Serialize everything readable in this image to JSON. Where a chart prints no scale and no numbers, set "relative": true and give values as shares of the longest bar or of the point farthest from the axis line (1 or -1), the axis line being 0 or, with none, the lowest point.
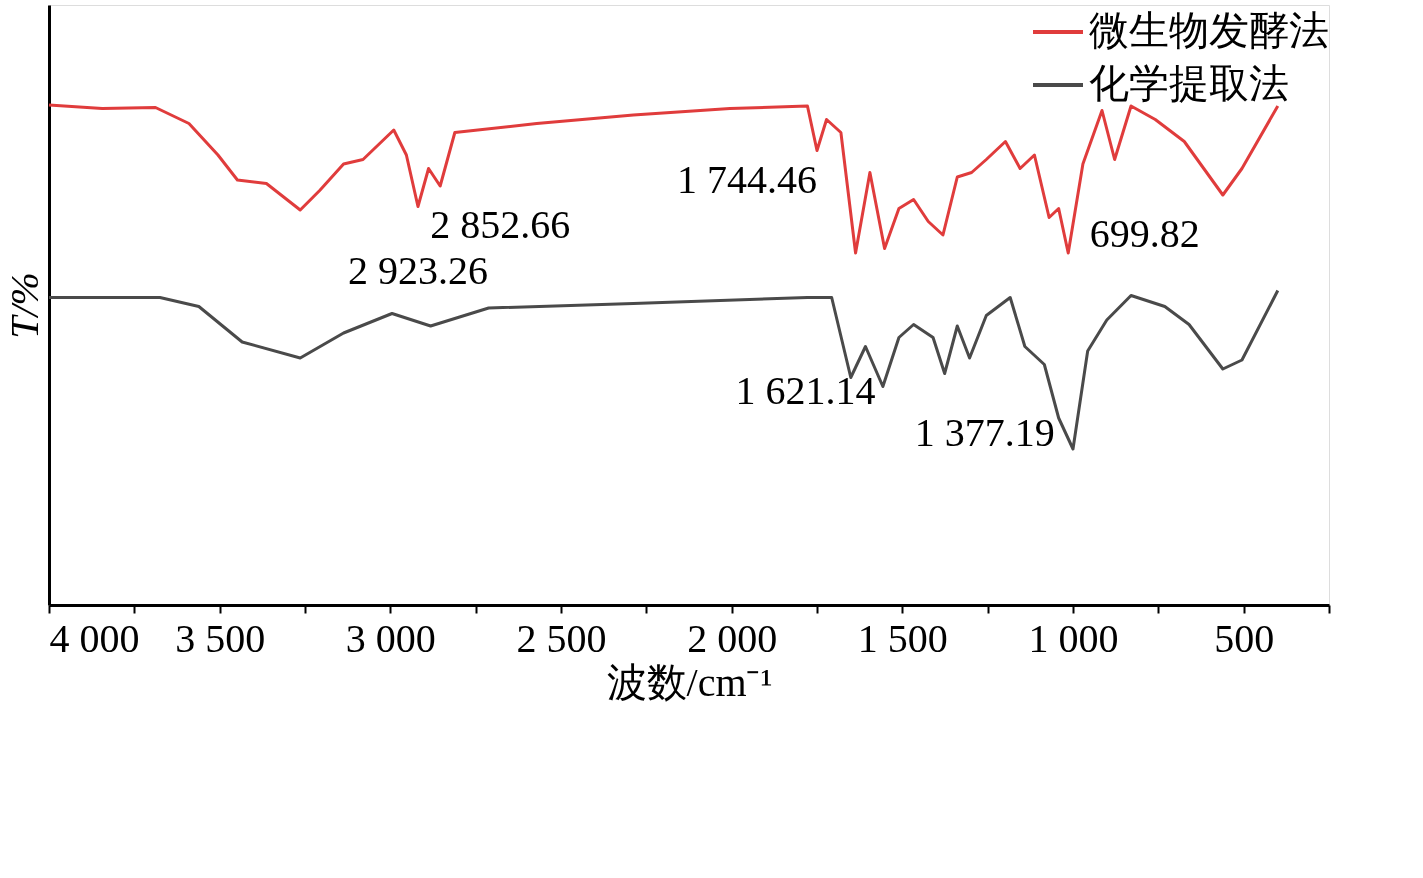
{
  "chart_data": {
    "type": "line",
    "relative": true,
    "xlabel": "波数/cm⁻¹",
    "ylabel": "T/%",
    "xlim": [
      4000,
      250
    ],
    "xticks": [
      {
        "value": 4000,
        "label": "4 000"
      },
      {
        "value": 3750,
        "label": null
      },
      {
        "value": 3500,
        "label": "3 500"
      },
      {
        "value": 3250,
        "label": null
      },
      {
        "value": 3000,
        "label": "3 000"
      },
      {
        "value": 2750,
        "label": null
      },
      {
        "value": 2500,
        "label": "2 500"
      },
      {
        "value": 2250,
        "label": null
      },
      {
        "value": 2000,
        "label": "2 000"
      },
      {
        "value": 1750,
        "label": null
      },
      {
        "value": 1500,
        "label": "1 500"
      },
      {
        "value": 1250,
        "label": null
      },
      {
        "value": 1000,
        "label": "1 000"
      },
      {
        "value": 750,
        "label": null
      },
      500,
      {
        "value": 250,
        "label": null
      }
    ],
    "legend": "top right",
    "grid": false,
    "series": [
      {
        "name": "微生物发酵法",
        "color": "#e03c3c",
        "x": [
          4000,
          3844,
          3688,
          3590,
          3505,
          3448,
          3363,
          3264,
          3207,
          3137,
          3080,
          2990,
          2953,
          2919,
          2888,
          2854,
          2811,
          2571,
          2288,
          2005,
          1778,
          1750,
          1722,
          1680,
          1637,
          1595,
          1552,
          1510,
          1467,
          1424,
          1381,
          1339,
          1297,
          1254,
          1198,
          1155,
          1113,
          1070,
          1042,
          1014,
          971,
          915,
          878,
          830,
          759,
          674,
          561,
          505,
          400
        ],
        "values": [
          1.0,
          0.993,
          0.995,
          0.963,
          0.9,
          0.85,
          0.843,
          0.79,
          0.829,
          0.882,
          0.891,
          0.95,
          0.9,
          0.797,
          0.873,
          0.838,
          0.945,
          0.963,
          0.98,
          0.993,
          0.998,
          0.909,
          0.971,
          0.945,
          0.704,
          0.865,
          0.713,
          0.793,
          0.811,
          0.767,
          0.74,
          0.856,
          0.865,
          0.891,
          0.927,
          0.873,
          0.9,
          0.775,
          0.793,
          0.704,
          0.882,
          0.989,
          0.891,
          0.998,
          0.971,
          0.927,
          0.82,
          0.873,
          0.998
        ]
      },
      {
        "name": "化学提取法",
        "color": "#4a4a4a",
        "x": [
          4000,
          3675,
          3561,
          3434,
          3264,
          3137,
          2995,
          2882,
          2712,
          2288,
          1778,
          1707,
          1651,
          1608,
          1557,
          1510,
          1467,
          1410,
          1376,
          1339,
          1303,
          1254,
          1184,
          1141,
          1084,
          1042,
          1000,
          957,
          901,
          830,
          731,
          660,
          561,
          505,
          400
        ],
        "values": [
          0.615,
          0.615,
          0.597,
          0.526,
          0.494,
          0.544,
          0.583,
          0.558,
          0.594,
          0.603,
          0.615,
          0.615,
          0.455,
          0.517,
          0.437,
          0.535,
          0.561,
          0.535,
          0.463,
          0.558,
          0.494,
          0.579,
          0.615,
          0.517,
          0.481,
          0.374,
          0.312,
          0.508,
          0.57,
          0.619,
          0.597,
          0.561,
          0.472,
          0.49,
          0.629
        ]
      }
    ],
    "annotations": [
      {
        "text": "2 923.26",
        "x": 2919,
        "y": 0.797
      },
      {
        "text": "2 852.66",
        "x": 2854,
        "y": 0.838
      },
      {
        "text": "1 744.46",
        "x": 1750,
        "y": 0.909
      },
      {
        "text": "699.82",
        "x": 878,
        "y": 0.891
      },
      {
        "text": "1 621.14",
        "x": 1608,
        "y": 0.517
      },
      {
        "text": "1 377.19",
        "x": 1376,
        "y": 0.463
      }
    ]
  }
}
